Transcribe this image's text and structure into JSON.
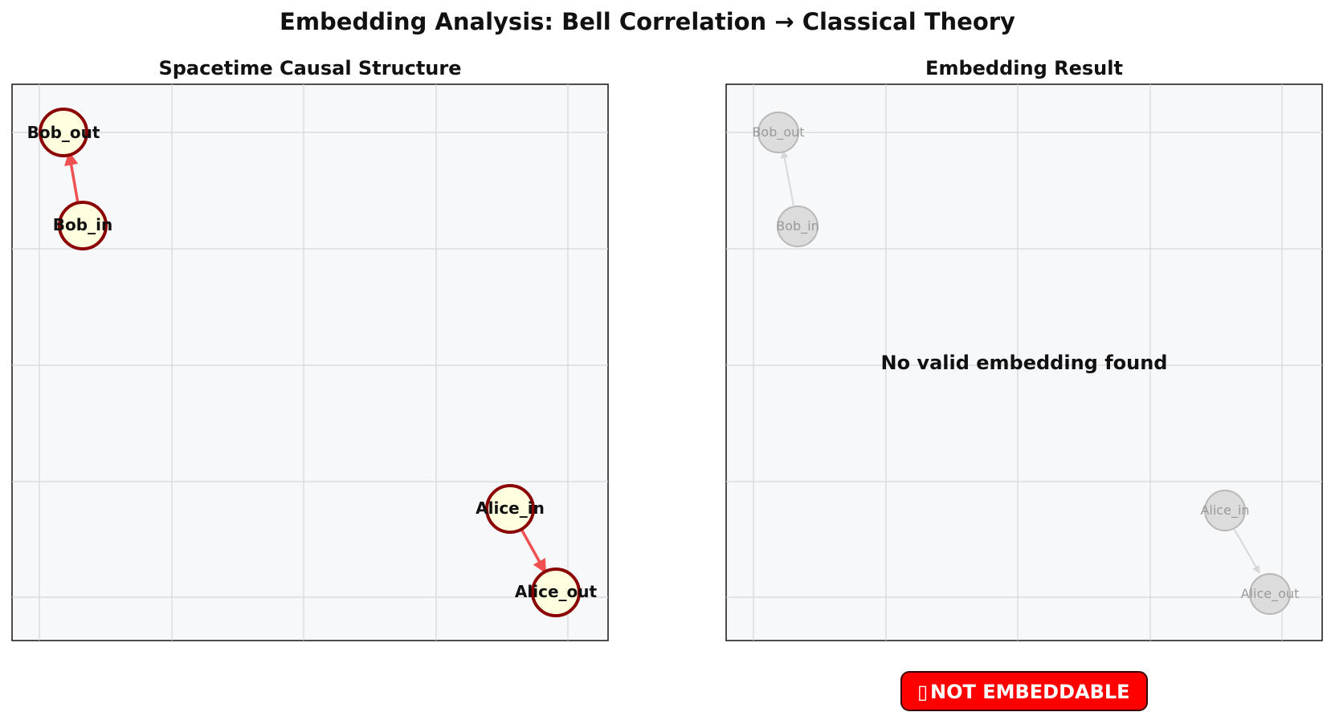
{
  "title": "Embedding Analysis: Bell Correlation → Classical Theory",
  "panels": {
    "left": {
      "title": "Spacetime Causal Structure",
      "nodes": [
        {
          "id": "bob_out",
          "label": "Bob_out"
        },
        {
          "id": "bob_in",
          "label": "Bob_in"
        },
        {
          "id": "alice_in",
          "label": "Alice_in"
        },
        {
          "id": "alice_out",
          "label": "Alice_out"
        }
      ],
      "edges": [
        {
          "from": "bob_in",
          "to": "bob_out"
        },
        {
          "from": "alice_in",
          "to": "alice_out"
        }
      ]
    },
    "right": {
      "title": "Embedding Result",
      "message": "No valid embedding found",
      "nodes": [
        {
          "id": "bob_out",
          "label": "Bob_out"
        },
        {
          "id": "bob_in",
          "label": "Bob_in"
        },
        {
          "id": "alice_in",
          "label": "Alice_in"
        },
        {
          "id": "alice_out",
          "label": "Alice_out"
        }
      ],
      "edges": [
        {
          "from": "bob_in",
          "to": "bob_out"
        },
        {
          "from": "alice_in",
          "to": "alice_out"
        }
      ]
    }
  },
  "badge": {
    "icon": "missing-glyph-icon",
    "icon_text": "▯",
    "label": "NOT EMBEDDABLE"
  },
  "colors": {
    "node_fill": "#ffffe0",
    "node_stroke": "#8b0000",
    "edge_active": "#f05050",
    "ghost_fill": "#dcdcdc",
    "badge_fill": "#ff0000"
  }
}
